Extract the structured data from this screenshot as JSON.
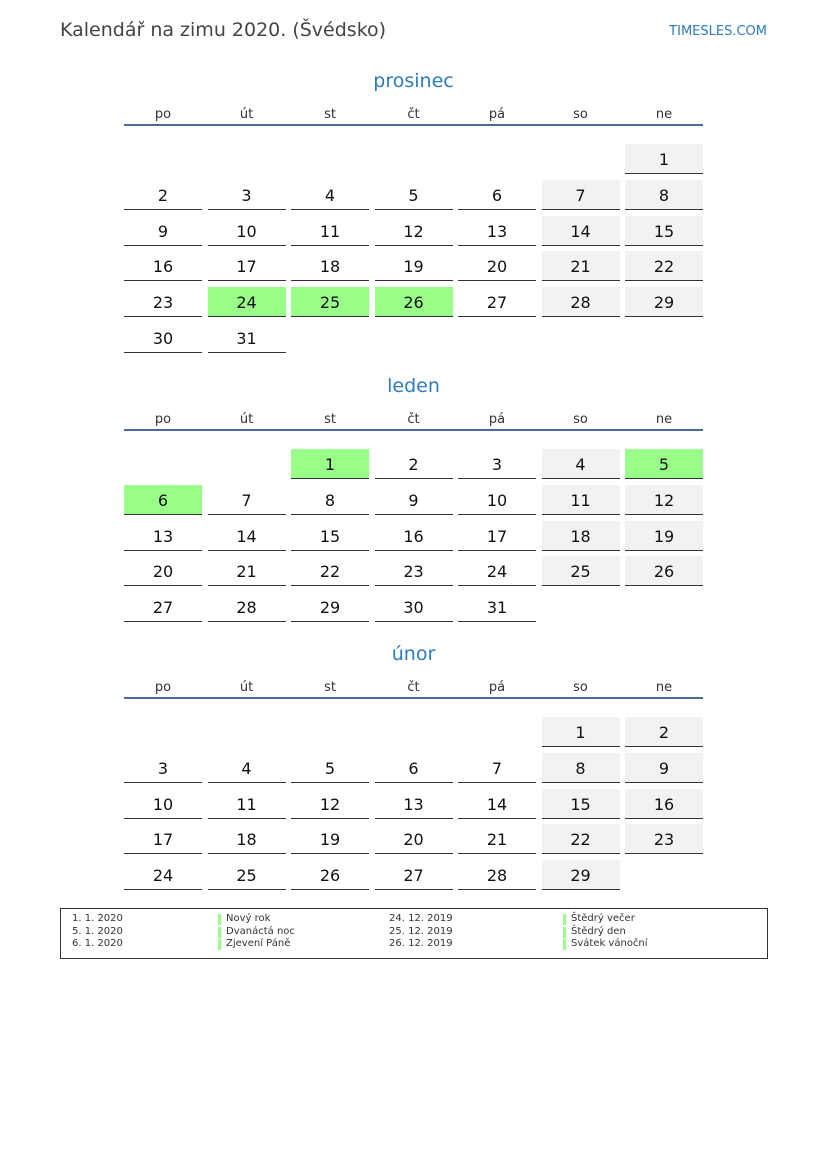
{
  "header": {
    "title": "Kalendář na zimu 2020. (Švédsko)",
    "brand": "TIMESLES.COM"
  },
  "colors": {
    "accent": "#2e7bbf",
    "holiday": "#99ff88",
    "weekend": "#f2f2f2",
    "rule": "#4a6a9a"
  },
  "weekdays": [
    "po",
    "út",
    "st",
    "čt",
    "pá",
    "so",
    "ne"
  ],
  "months": [
    {
      "name": "prosinec",
      "weeks": [
        [
          null,
          null,
          null,
          null,
          null,
          null,
          1
        ],
        [
          2,
          3,
          4,
          5,
          6,
          7,
          8
        ],
        [
          9,
          10,
          11,
          12,
          13,
          14,
          15
        ],
        [
          16,
          17,
          18,
          19,
          20,
          21,
          22
        ],
        [
          23,
          24,
          25,
          26,
          27,
          28,
          29
        ],
        [
          30,
          31,
          null,
          null,
          null,
          null,
          null
        ]
      ],
      "holidays": [
        24,
        25,
        26
      ]
    },
    {
      "name": "leden",
      "weeks": [
        [
          null,
          null,
          1,
          2,
          3,
          4,
          5
        ],
        [
          6,
          7,
          8,
          9,
          10,
          11,
          12
        ],
        [
          13,
          14,
          15,
          16,
          17,
          18,
          19
        ],
        [
          20,
          21,
          22,
          23,
          24,
          25,
          26
        ],
        [
          27,
          28,
          29,
          30,
          31,
          null,
          null
        ]
      ],
      "holidays": [
        1,
        5,
        6
      ]
    },
    {
      "name": "únor",
      "weeks": [
        [
          null,
          null,
          null,
          null,
          null,
          1,
          2
        ],
        [
          3,
          4,
          5,
          6,
          7,
          8,
          9
        ],
        [
          10,
          11,
          12,
          13,
          14,
          15,
          16
        ],
        [
          17,
          18,
          19,
          20,
          21,
          22,
          23
        ],
        [
          24,
          25,
          26,
          27,
          28,
          29,
          null
        ]
      ],
      "holidays": []
    }
  ],
  "legend": [
    {
      "date": "1. 1. 2020",
      "name": "Nový rok"
    },
    {
      "date": "5. 1. 2020",
      "name": "Dvanáctá noc"
    },
    {
      "date": "6. 1. 2020",
      "name": "Zjevení Páně"
    },
    {
      "date": "24. 12. 2019",
      "name": "Štědrý večer"
    },
    {
      "date": "25. 12. 2019",
      "name": "Štědrý den"
    },
    {
      "date": "26. 12. 2019",
      "name": "Svátek vánoční"
    }
  ]
}
